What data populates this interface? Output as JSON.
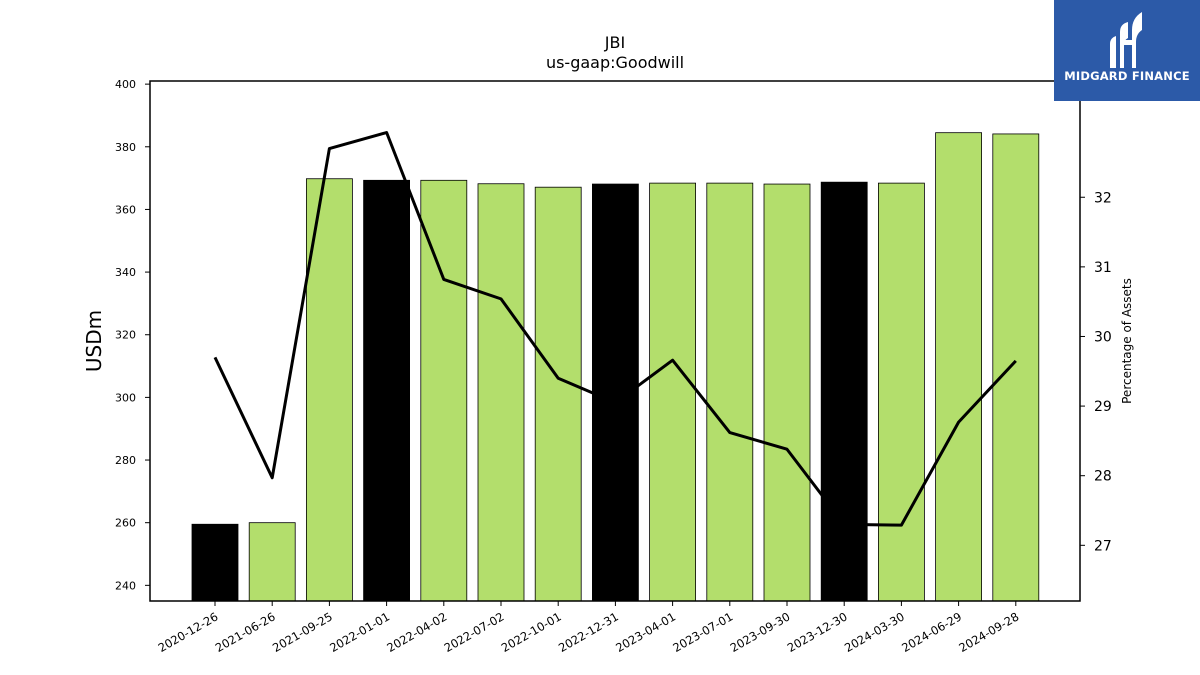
{
  "chart_data": {
    "type": "bar",
    "title": "JBI",
    "subtitle": "us-gaap:Goodwill",
    "ylabel": "USDm",
    "y2label": "Percentage of Assets",
    "categories": [
      "2020-12-26",
      "2021-06-26",
      "2021-09-25",
      "2022-01-01",
      "2022-04-02",
      "2022-07-02",
      "2022-10-01",
      "2022-12-31",
      "2023-04-01",
      "2023-07-01",
      "2023-09-30",
      "2023-12-30",
      "2024-03-30",
      "2024-06-29",
      "2024-09-28"
    ],
    "series": [
      {
        "type": "bar",
        "values": [
          259.5,
          260.0,
          369.8,
          369.3,
          369.3,
          368.2,
          367.1,
          368.1,
          368.4,
          368.4,
          368.1,
          368.7,
          368.4,
          384.5,
          384.1
        ],
        "colors": [
          "#000000",
          "#b3de6c",
          "#b3de6c",
          "#000000",
          "#b3de6c",
          "#b3de6c",
          "#b3de6c",
          "#000000",
          "#b3de6c",
          "#b3de6c",
          "#b3de6c",
          "#000000",
          "#b3de6c",
          "#b3de6c",
          "#b3de6c"
        ]
      },
      {
        "type": "line",
        "axis": "right",
        "color": "#000000",
        "values": [
          29.7,
          27.97,
          32.7,
          32.93,
          30.82,
          30.54,
          29.4,
          29.05,
          29.66,
          28.62,
          28.38,
          27.3,
          27.29,
          28.77,
          29.65
        ]
      }
    ],
    "ylim": [
      235,
      401
    ],
    "yticks": [
      240,
      260,
      280,
      300,
      320,
      340,
      360,
      380,
      400
    ],
    "y2lim": [
      26.2,
      33.67
    ],
    "y2ticks": [
      27,
      28,
      29,
      30,
      31,
      32
    ],
    "grid": false,
    "legend": "none"
  },
  "logo": {
    "brand": "MIDGARD FINANCE"
  }
}
